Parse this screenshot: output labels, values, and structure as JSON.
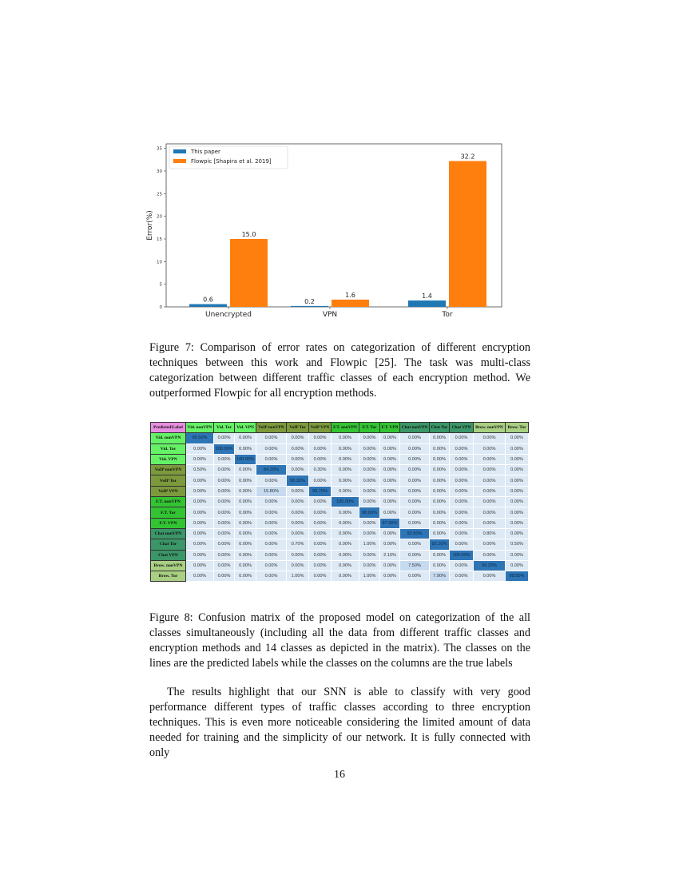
{
  "chart_data": {
    "type": "bar",
    "categories": [
      "Unencrypted",
      "VPN",
      "Tor"
    ],
    "series": [
      {
        "name": "This paper",
        "values": [
          0.6,
          0.2,
          1.4
        ],
        "color": "#1f77b4"
      },
      {
        "name": "Flowpic [Shapira et al. 2019]",
        "values": [
          15.0,
          1.6,
          32.2
        ],
        "color": "#ff7f0e"
      }
    ],
    "data_labels": [
      [
        "0.6",
        "0.2",
        "1.4"
      ],
      [
        "15.0",
        "1.6",
        "32.2"
      ]
    ],
    "xlabel": "",
    "ylabel": "Error(%)",
    "ylim": [
      0,
      36
    ],
    "yticks": [
      "0",
      "5",
      "10",
      "15",
      "20",
      "25",
      "30",
      "35"
    ],
    "legend": "top-left",
    "grid": false
  },
  "figure7_caption": "Figure 7: Comparison of error rates on categorization of different encryption techniques between this work and Flowpic [25]. The task was multi-class categorization between different traffic classes of each encryption method. We outperformed Flowpic for all encryption methods.",
  "matrix": {
    "corner": "Predicted\\Label",
    "labels": [
      "Vid. nonVPN",
      "Vid. Tor",
      "Vid. VPN",
      "VoIP nonVPN",
      "VoIP Tor",
      "VoIP VPN",
      "F.T. nonVPN",
      "F.T. Tor",
      "F.T. VPN",
      "Chat nonVPN",
      "Chat Tor",
      "Chat VPN",
      "Brow. nonVPN",
      "Brow. Tor"
    ],
    "group_colors": [
      "#66f266",
      "#7c9a3c",
      "#33c433",
      "#3b9668",
      "#a9cf83"
    ],
    "corner_color": "#e68ee0",
    "cell_color": "#dde9f5",
    "diag_color": "#2e75b6",
    "rows": [
      [
        "99.50%",
        "0.00%",
        "0.00%",
        "0.00%",
        "0.00%",
        "0.00%",
        "0.00%",
        "0.00%",
        "0.00%",
        "0.00%",
        "0.00%",
        "0.00%",
        "0.00%",
        "0.00%"
      ],
      [
        "0.00%",
        "100.00%",
        "0.00%",
        "0.00%",
        "0.00%",
        "0.00%",
        "0.00%",
        "0.00%",
        "0.00%",
        "0.00%",
        "0.00%",
        "0.00%",
        "0.00%",
        "0.00%"
      ],
      [
        "0.00%",
        "0.00%",
        "100.00%",
        "0.00%",
        "0.00%",
        "0.00%",
        "0.00%",
        "0.00%",
        "0.00%",
        "0.00%",
        "0.00%",
        "0.00%",
        "0.00%",
        "0.00%"
      ],
      [
        "0.50%",
        "0.00%",
        "0.00%",
        "84.20%",
        "0.00%",
        "0.30%",
        "0.00%",
        "0.00%",
        "0.00%",
        "0.00%",
        "0.00%",
        "0.00%",
        "0.00%",
        "0.00%"
      ],
      [
        "0.00%",
        "0.00%",
        "0.00%",
        "0.00%",
        "98.30%",
        "0.00%",
        "0.00%",
        "0.00%",
        "0.00%",
        "0.00%",
        "0.00%",
        "0.00%",
        "0.00%",
        "0.00%"
      ],
      [
        "0.00%",
        "0.00%",
        "0.00%",
        "15.80%",
        "0.00%",
        "99.70%",
        "0.00%",
        "0.00%",
        "0.00%",
        "0.00%",
        "0.00%",
        "0.00%",
        "0.00%",
        "0.00%"
      ],
      [
        "0.00%",
        "0.00%",
        "0.00%",
        "0.00%",
        "0.00%",
        "0.00%",
        "100.00%",
        "0.00%",
        "0.00%",
        "0.00%",
        "0.00%",
        "0.00%",
        "0.00%",
        "0.00%"
      ],
      [
        "0.00%",
        "0.00%",
        "0.00%",
        "0.00%",
        "0.00%",
        "0.00%",
        "0.00%",
        "98.00%",
        "0.00%",
        "0.00%",
        "0.00%",
        "0.00%",
        "0.00%",
        "0.00%"
      ],
      [
        "0.00%",
        "0.00%",
        "0.00%",
        "0.00%",
        "0.00%",
        "0.00%",
        "0.00%",
        "0.00%",
        "97.90%",
        "0.00%",
        "0.00%",
        "0.00%",
        "0.00%",
        "0.00%"
      ],
      [
        "0.00%",
        "0.00%",
        "0.00%",
        "0.00%",
        "0.00%",
        "0.00%",
        "0.00%",
        "0.00%",
        "0.00%",
        "92.50%",
        "0.00%",
        "0.00%",
        "0.80%",
        "0.00%"
      ],
      [
        "0.00%",
        "0.00%",
        "0.00%",
        "0.00%",
        "0.70%",
        "0.00%",
        "0.00%",
        "1.00%",
        "0.00%",
        "0.00%",
        "92.10%",
        "0.00%",
        "0.00%",
        "0.50%"
      ],
      [
        "0.00%",
        "0.00%",
        "0.00%",
        "0.00%",
        "0.00%",
        "0.00%",
        "0.00%",
        "0.00%",
        "2.10%",
        "0.00%",
        "0.00%",
        "100.00%",
        "0.00%",
        "0.00%"
      ],
      [
        "0.00%",
        "0.00%",
        "0.00%",
        "0.00%",
        "0.00%",
        "0.00%",
        "0.00%",
        "0.00%",
        "0.00%",
        "7.50%",
        "0.00%",
        "0.00%",
        "99.20%",
        "0.00%"
      ],
      [
        "0.00%",
        "0.00%",
        "0.00%",
        "0.00%",
        "1.00%",
        "0.00%",
        "0.00%",
        "1.00%",
        "0.00%",
        "0.00%",
        "7.90%",
        "0.00%",
        "0.00%",
        "99.50%"
      ]
    ]
  },
  "figure8_caption": "Figure 8: Confusion matrix of the proposed model on categorization of the all classes simultaneously (including all the data from different traffic classes and encryption methods and 14 classes as depicted in the matrix). The classes on the lines are the predicted labels while the classes on the columns are the true labels",
  "body_paragraph": "The results highlight that our SNN is able to classify with very good performance different types of traffic classes according to three encryption techniques. This is even more noticeable considering the limited amount of data needed for training and the simplicity of our network. It is fully connected with only",
  "page_number": "16"
}
